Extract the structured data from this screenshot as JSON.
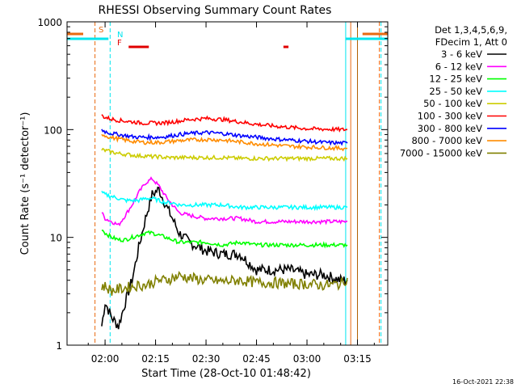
{
  "chart_data": {
    "type": "line",
    "title": "RHESSI Observing Summary Count Rates",
    "xlabel": "Start Time (28-Oct-10 01:48:42)",
    "ylabel": "Count Rate (s⁻¹ detector⁻¹)",
    "y_scale": "log",
    "ylim": [
      1,
      1000
    ],
    "xlim": [
      "01:48:42",
      "03:24:00"
    ],
    "x_tick_labels": [
      "02:00",
      "02:15",
      "02:30",
      "02:45",
      "03:00",
      "03:15"
    ],
    "y_tick_labels": [
      "1",
      "10",
      "100",
      "1000"
    ],
    "legend_header": [
      "Det 1,3,4,5,6,9,",
      "FDecim 1, Att 0"
    ],
    "timestamp": "16-Oct-2021 22:38",
    "flags": [
      {
        "label": "S",
        "color": "#e86a10",
        "segments": [
          [
            "01:48:42",
            "01:53:30"
          ],
          [
            "03:16:30",
            "03:24:00"
          ]
        ]
      },
      {
        "label": "N",
        "color": "#00e5ee",
        "segments": [
          [
            "01:48:42",
            "02:01:00"
          ],
          [
            "03:11:30",
            "03:24:00"
          ]
        ]
      },
      {
        "label": "F",
        "color": "#e00000",
        "segments": [
          [
            "02:07:00",
            "02:13:00"
          ],
          [
            "02:53:00",
            "02:54:30"
          ]
        ]
      }
    ],
    "vertical_lines": [
      {
        "time": "01:57:00",
        "color": "#e86a10",
        "dashed": true
      },
      {
        "time": "02:01:30",
        "color": "#00e5ee",
        "dashed": true
      },
      {
        "time": "03:11:30",
        "color": "#00e5ee",
        "dashed": false
      },
      {
        "time": "03:13:00",
        "color": "#e86a10",
        "dashed": false
      },
      {
        "time": "03:15:00",
        "color": "#b06000",
        "dashed": false
      },
      {
        "time": "03:21:30",
        "color": "#e86a10",
        "dashed": true
      },
      {
        "time": "03:22:00",
        "color": "#00e5ee",
        "dashed": true
      }
    ],
    "x_times": [
      "01:59",
      "02:00",
      "02:02",
      "02:04",
      "02:06",
      "02:08",
      "02:10",
      "02:12",
      "02:14",
      "02:16",
      "02:18",
      "02:20",
      "02:22",
      "02:25",
      "02:30",
      "02:35",
      "02:40",
      "02:45",
      "02:50",
      "02:55",
      "03:00",
      "03:05",
      "03:10",
      "03:12"
    ],
    "series": [
      {
        "name": "3 - 6 keV",
        "color": "#000000",
        "values": [
          1.5,
          2.5,
          1.8,
          1.5,
          2.5,
          4,
          8,
          15,
          25,
          28,
          20,
          15,
          11,
          9,
          7.5,
          7,
          7,
          5,
          5,
          5,
          4.5,
          4.5,
          4,
          4
        ]
      },
      {
        "name": "6 - 12 keV",
        "color": "#ff00ff",
        "values": [
          17,
          15,
          14,
          13,
          16,
          20,
          26,
          32,
          35,
          30,
          24,
          20,
          17,
          16,
          15,
          15,
          15,
          14,
          14,
          14,
          14,
          14,
          14,
          14
        ]
      },
      {
        "name": "12 - 25 keV",
        "color": "#00ff00",
        "values": [
          12,
          11,
          10,
          9.5,
          9.5,
          10,
          10.5,
          11,
          11,
          10.5,
          10,
          9.5,
          9,
          9,
          9,
          8.5,
          9,
          8.5,
          8.5,
          8.5,
          8.5,
          8.5,
          8.5,
          8.5
        ]
      },
      {
        "name": "25 - 50 keV",
        "color": "#00ffff",
        "values": [
          26,
          25,
          24,
          23,
          22,
          22,
          22,
          23,
          23,
          22,
          21,
          21,
          20,
          20,
          20,
          20,
          19,
          19,
          19,
          19,
          19,
          19,
          19,
          19
        ]
      },
      {
        "name": "50 - 100 keV",
        "color": "#cccc00",
        "values": [
          65,
          64,
          62,
          60,
          59,
          58,
          57,
          57,
          56,
          56,
          55,
          55,
          55,
          55,
          55,
          55,
          54,
          54,
          54,
          54,
          54,
          54,
          54,
          54
        ]
      },
      {
        "name": "100 - 300 keV",
        "color": "#ff0000",
        "values": [
          135,
          130,
          125,
          122,
          120,
          118,
          116,
          115,
          115,
          115,
          116,
          118,
          120,
          124,
          127,
          124,
          118,
          112,
          108,
          105,
          102,
          101,
          100,
          100
        ]
      },
      {
        "name": "300 - 800 keV",
        "color": "#0000ff",
        "values": [
          100,
          96,
          92,
          90,
          88,
          86,
          85,
          85,
          85,
          85,
          86,
          88,
          90,
          92,
          94,
          92,
          88,
          85,
          82,
          80,
          78,
          76,
          75,
          75
        ]
      },
      {
        "name": "800 - 7000 keV",
        "color": "#ff8c00",
        "values": [
          92,
          88,
          84,
          82,
          80,
          78,
          77,
          76,
          76,
          76,
          77,
          78,
          79,
          80,
          81,
          80,
          77,
          74,
          72,
          70,
          69,
          68,
          67,
          67
        ]
      },
      {
        "name": "7000 - 15000 keV",
        "color": "#808000",
        "values": [
          3.5,
          3.5,
          3.2,
          3.3,
          3.4,
          3.5,
          3.6,
          3.6,
          3.8,
          4.0,
          4.0,
          4.2,
          4.4,
          4.2,
          4.0,
          3.9,
          4.0,
          3.8,
          3.8,
          3.7,
          3.7,
          3.6,
          3.7,
          4.2
        ]
      }
    ]
  }
}
